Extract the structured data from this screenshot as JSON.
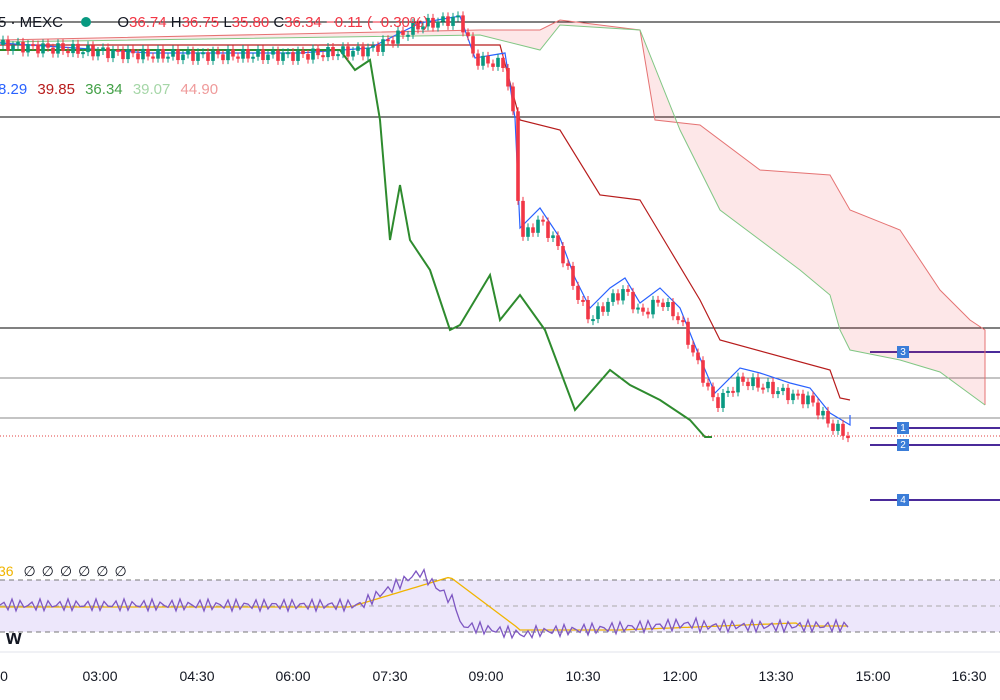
{
  "header": {
    "symbol": "5 · MEXC",
    "open_label": "O",
    "open": "36.74",
    "high_label": "H",
    "high": "36.75",
    "low_label": "L",
    "low": "35.80",
    "close_label": "C",
    "close": "36.34",
    "change": "−0.11 (−0.30%)"
  },
  "indicator": {
    "values": [
      "8.29",
      "39.85",
      "36.34",
      "39.07",
      "44.90"
    ]
  },
  "rsi": {
    "value": "36",
    "extras": [
      "∅",
      "∅",
      "∅",
      "∅",
      "∅",
      "∅"
    ]
  },
  "watermark": "w",
  "time_axis": [
    "0",
    "03:00",
    "04:30",
    "06:00",
    "07:30",
    "09:00",
    "10:30",
    "12:00",
    "13:30",
    "15:00",
    "16:30"
  ],
  "markers": [
    "1",
    "2",
    "3",
    "4"
  ]
}
